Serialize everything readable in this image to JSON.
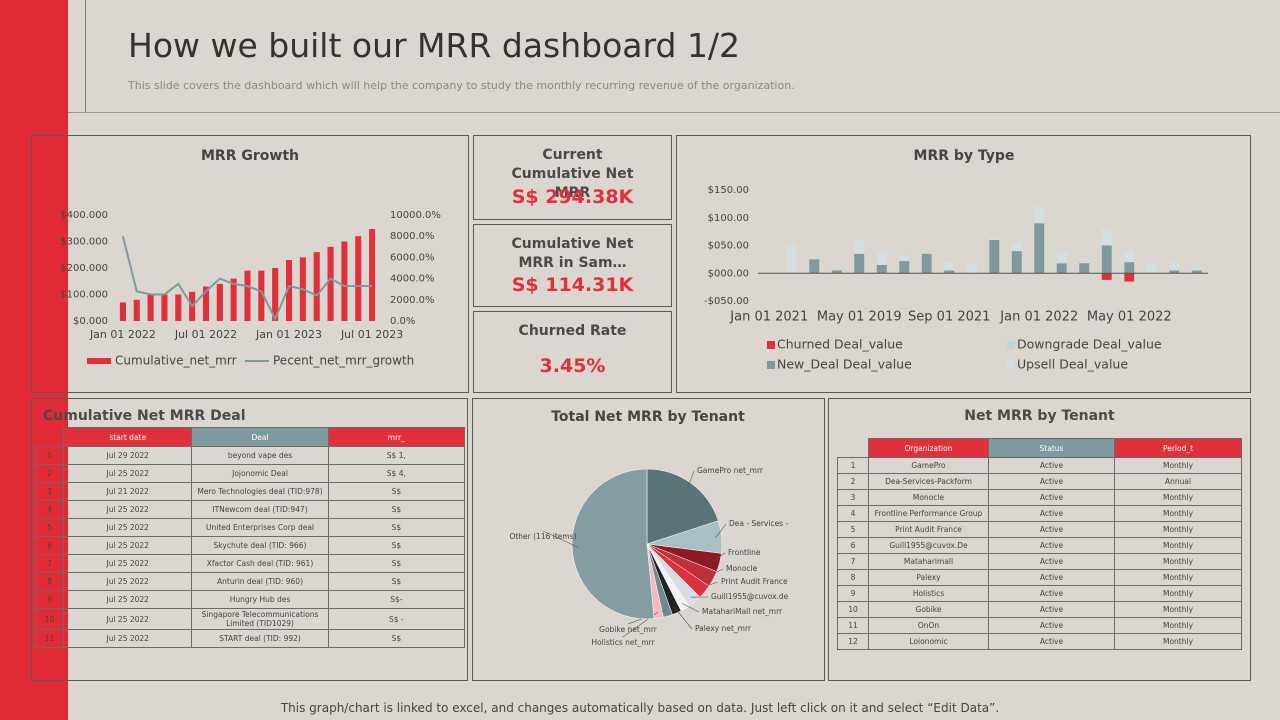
{
  "header": {
    "title": "How we built our MRR dashboard 1/2",
    "subtitle": "This slide covers the dashboard which will help the company to study the monthly recurring revenue of the organization."
  },
  "kpis": [
    {
      "title": "Current Cumulative Net MRR",
      "value": "S$ 294.38K"
    },
    {
      "title": "Cumulative Net MRR in Sam…",
      "value": "S$ 114.31K"
    },
    {
      "title": "Churned Rate",
      "value": "3.45%"
    }
  ],
  "tables": [
    {
      "title": "Cumulative Net MRR Deal",
      "columns": [
        "start date",
        "Deal",
        "mrr_"
      ],
      "rows": [
        [
          "1",
          "Jul 29 2022",
          "beyond vape des",
          "S$ 1,"
        ],
        [
          "2",
          "Jul 25 2022",
          "Jojonomic Deal",
          "S$ 4,"
        ],
        [
          "3",
          "Jul 21 2022",
          "Mero Technologies deal (TID:978)",
          "S$"
        ],
        [
          "4",
          "Jul 25 2022",
          "ITNewcom deal (TID:947)",
          "S$"
        ],
        [
          "5",
          "Jul 25 2022",
          "United Enterprises Corp deal",
          "S$"
        ],
        [
          "6",
          "Jul 25 2022",
          "Skychute deal (TID: 966)",
          "S$"
        ],
        [
          "7",
          "Jul 25 2022",
          "Xfactor Cash deal (TID: 961)",
          "S$"
        ],
        [
          "8",
          "Jul 25 2022",
          "Anturin deal (TID: 960)",
          "S$"
        ],
        [
          "9",
          "Jul 25 2022",
          "Hungry Hub des",
          "S$-"
        ],
        [
          "10",
          "Jul 25 2022",
          "Singapore Telecommunications Limited (TID1029)",
          "S$ -"
        ],
        [
          "11",
          "Jul 25 2022",
          "START deal (TID: 992)",
          "S$"
        ]
      ]
    },
    {
      "title": "Net MRR by Tenant",
      "columns": [
        "Organization",
        "Status",
        "Period_t"
      ],
      "rows": [
        [
          "1",
          "GamePro",
          "Active",
          "Monthly"
        ],
        [
          "2",
          "Dea-Services-Packform",
          "Active",
          "Annual"
        ],
        [
          "3",
          "Monocle",
          "Active",
          "Monthly"
        ],
        [
          "4",
          "Frontline Performance Group",
          "Active",
          "Monthly"
        ],
        [
          "5",
          "Print Audit France",
          "Active",
          "Monthly"
        ],
        [
          "6",
          "Guill1955@cuvox.De",
          "Active",
          "Monthly"
        ],
        [
          "7",
          "Mataharimall",
          "Active",
          "Monthly"
        ],
        [
          "8",
          "Palexy",
          "Active",
          "Monthly"
        ],
        [
          "9",
          "Holistics",
          "Active",
          "Monthly"
        ],
        [
          "10",
          "Gobike",
          "Active",
          "Monthly"
        ],
        [
          "11",
          "OnOn",
          "Active",
          "Monthly"
        ],
        [
          "12",
          "Loionomic",
          "Active",
          "Monthly"
        ]
      ]
    }
  ],
  "chart_data": [
    {
      "type": "combo",
      "title": "MRR Growth",
      "grid": false,
      "categories": [
        "Jan 01 2022",
        null,
        null,
        null,
        null,
        null,
        "Jul 01 2022",
        null,
        null,
        null,
        null,
        null,
        "Jan 01 2023",
        null,
        null,
        null,
        null,
        null,
        "Jul 01 2023"
      ],
      "series": [
        {
          "name": "Cumulative_net_mrr",
          "type": "bar",
          "color": "#e0303b",
          "values": [
            70,
            80,
            100,
            100,
            100,
            110,
            130,
            140,
            160,
            190,
            190,
            200,
            230,
            240,
            260,
            280,
            300,
            320,
            347
          ]
        },
        {
          "name": "Pecent_net_mrr_growth",
          "type": "line",
          "axis": "y2",
          "color": "#7f9a9e",
          "values": [
            8000,
            2800,
            2500,
            2500,
            3500,
            1400,
            2800,
            4000,
            3500,
            3300,
            2800,
            200,
            3300,
            3000,
            2400,
            4000,
            3300,
            3300,
            3300
          ]
        }
      ],
      "ylim": [
        0,
        400
      ],
      "yticks": [
        {
          "value": 0,
          "label": "$0.000"
        },
        {
          "value": 100,
          "label": "$100.000"
        },
        {
          "value": 200,
          "label": "$200.000"
        },
        {
          "value": 300,
          "label": "$300.000"
        },
        {
          "value": 400,
          "label": "$400.000"
        }
      ],
      "y2lim": [
        0,
        10000
      ],
      "y2ticks": [
        {
          "value": 0,
          "label": "0.0%"
        },
        {
          "value": 2000,
          "label": "2000.0%"
        },
        {
          "value": 4000,
          "label": "4000.0%"
        },
        {
          "value": 6000,
          "label": "6000.0%"
        },
        {
          "value": 8000,
          "label": "8000.0%"
        },
        {
          "value": 10000,
          "label": "10000.0%"
        }
      ]
    },
    {
      "type": "stacked_bar",
      "title": "MRR by Type",
      "grid": false,
      "categories": [
        "Jan 01 2021",
        null,
        null,
        null,
        "May 01 2019",
        null,
        null,
        null,
        "Sep 01 2021",
        null,
        null,
        null,
        "Jan 01 2022",
        null,
        null,
        null,
        "May 01 2022",
        null,
        null,
        null
      ],
      "series": [
        {
          "name": "Churned Deal_value",
          "color": "#e0303b",
          "values": [
            0,
            0,
            0,
            0,
            0,
            0,
            0,
            0,
            0,
            0,
            0,
            0,
            0,
            0,
            0,
            -12,
            -15,
            0,
            0,
            0
          ]
        },
        {
          "name": "Downgrade Deal_value",
          "color": "#c5d3d9",
          "values": [
            0,
            0,
            0,
            0,
            0,
            0,
            0,
            0,
            0,
            0,
            0,
            0,
            0,
            0,
            0,
            0,
            0,
            0,
            0,
            0
          ]
        },
        {
          "name": "New_Deal Deal_value",
          "color": "#7f9a9e",
          "values": [
            0,
            0,
            25,
            5,
            35,
            15,
            22,
            35,
            5,
            0,
            60,
            40,
            90,
            18,
            18,
            50,
            20,
            0,
            5,
            5
          ]
        },
        {
          "name": "Upsell Deal_value",
          "color": "#d5dee1",
          "values": [
            2,
            50,
            0,
            0,
            25,
            25,
            10,
            0,
            15,
            15,
            5,
            15,
            30,
            20,
            0,
            30,
            20,
            18,
            15,
            5
          ]
        }
      ],
      "ylim": [
        -50,
        150
      ],
      "yticks": [
        {
          "value": -50,
          "label": "-$050.00"
        },
        {
          "value": 0,
          "label": "$000.00"
        },
        {
          "value": 50,
          "label": "$050.00"
        },
        {
          "value": 100,
          "label": "$100.00"
        },
        {
          "value": 150,
          "label": "$150.00"
        }
      ]
    },
    {
      "type": "pie",
      "title": "Total Net MRR by Tenant",
      "categories": [
        "GamePro net_mrr",
        "Dea - Services -",
        "Frontline",
        "Monocle",
        "Print Audit France",
        "Guill1955@cuvox.de",
        "MatahariMall net_mrr",
        "Palexy net_mrr",
        "Gobike net_mrr",
        "Holistics net_mrr",
        "Other (116 items)"
      ],
      "values": [
        20,
        7,
        4,
        3.5,
        3,
        3,
        2,
        2,
        2,
        2,
        51.5
      ],
      "colors": [
        "#5a7378",
        "#a9bfc4",
        "#8b1a22",
        "#c0303a",
        "#e0303b",
        "#d6dfe2",
        "#f2f2f2",
        "#222222",
        "#6f8a90",
        "#f4b8c0",
        "#839da2"
      ]
    }
  ],
  "footer": "This graph/chart is linked to excel, and changes automatically based on data. Just left click on it and select “Edit Data”."
}
